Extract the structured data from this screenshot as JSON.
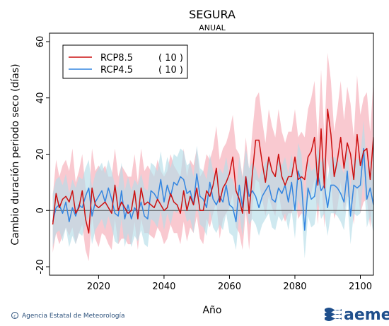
{
  "chart_data": {
    "type": "line",
    "title": "SEGURA",
    "subtitle": "ANUAL",
    "xlabel": "Año",
    "ylabel": "Cambio duración periodo seco (días)",
    "xlim": [
      2005,
      2104
    ],
    "ylim": [
      -23,
      63
    ],
    "xticks": [
      2020,
      2040,
      2060,
      2080,
      2100
    ],
    "yticks": [
      -20,
      0,
      20,
      40,
      60
    ],
    "x_start": 2006,
    "reference_line": 0,
    "legend_position": "top-left",
    "series": [
      {
        "name": "RCP8.5",
        "count": "( 10 )",
        "color": "#cc1010",
        "band_color": "#f7b7c0",
        "values": [
          -5,
          6,
          1,
          4,
          5,
          3,
          7,
          -1,
          1,
          7,
          -3,
          -8,
          8,
          2,
          1,
          2,
          3,
          1,
          -1,
          9,
          0,
          3,
          1,
          -1,
          0,
          7,
          -3,
          8,
          2,
          3,
          2,
          1,
          4,
          2,
          0,
          1,
          6,
          3,
          2,
          -1,
          7,
          0,
          5,
          2,
          8,
          0,
          0,
          7,
          5,
          9,
          15,
          3,
          8,
          10,
          13,
          19,
          7,
          4,
          -1,
          12,
          -1,
          13,
          25,
          25,
          17,
          10,
          19,
          14,
          12,
          20,
          12,
          9,
          12,
          12,
          19,
          11,
          12,
          11,
          19,
          21,
          26,
          9,
          29,
          8,
          36,
          27,
          12,
          18,
          26,
          15,
          24,
          20,
          11,
          27,
          16,
          21,
          22,
          11,
          26,
          25,
          9,
          31,
          43,
          37
        ],
        "low": [
          -15,
          -8,
          -12,
          -9,
          -6,
          -9,
          -6,
          -12,
          -8,
          -5,
          -14,
          -18,
          -2,
          -10,
          -13,
          -8,
          -9,
          -12,
          -14,
          -3,
          -12,
          -10,
          -10,
          -12,
          -12,
          -4,
          -14,
          -3,
          -8,
          -8,
          -9,
          -10,
          -6,
          -8,
          -12,
          -10,
          -5,
          -8,
          -8,
          -12,
          -4,
          -11,
          -6,
          -8,
          -2,
          -10,
          -12,
          -3,
          -6,
          -1,
          3,
          -10,
          -3,
          -1,
          1,
          6,
          -6,
          -8,
          -14,
          0,
          -14,
          1,
          11,
          10,
          4,
          -2,
          5,
          1,
          -2,
          7,
          -1,
          -4,
          -1,
          -1,
          5,
          -3,
          -1,
          -2,
          4,
          6,
          11,
          -5,
          12,
          -6,
          18,
          10,
          -3,
          1,
          10,
          -1,
          5,
          4,
          -5,
          9,
          -1,
          3,
          4,
          -6,
          8,
          7,
          -8,
          13,
          24,
          18
        ],
        "high": [
          5,
          18,
          12,
          16,
          18,
          14,
          22,
          10,
          14,
          20,
          8,
          4,
          22,
          14,
          16,
          14,
          16,
          12,
          12,
          22,
          12,
          16,
          14,
          12,
          12,
          20,
          10,
          22,
          14,
          16,
          14,
          12,
          18,
          14,
          12,
          14,
          20,
          16,
          14,
          12,
          22,
          12,
          18,
          16,
          22,
          12,
          14,
          20,
          18,
          22,
          30,
          18,
          22,
          24,
          28,
          34,
          22,
          20,
          12,
          26,
          14,
          28,
          40,
          42,
          32,
          24,
          36,
          30,
          26,
          36,
          28,
          24,
          28,
          28,
          36,
          26,
          28,
          26,
          36,
          40,
          46,
          24,
          50,
          26,
          56,
          46,
          28,
          36,
          46,
          32,
          44,
          38,
          26,
          48,
          34,
          40,
          42,
          28,
          46,
          44,
          26,
          58,
          66,
          62
        ]
      },
      {
        "name": "RCP4.5",
        "count": "( 10 )",
        "color": "#3385e0",
        "band_color": "#b6dde8",
        "values": [
          -4,
          1,
          2,
          -1,
          3,
          -4,
          1,
          -2,
          2,
          1,
          5,
          8,
          -2,
          3,
          5,
          7,
          3,
          8,
          4,
          -1,
          -2,
          7,
          -3,
          2,
          -3,
          1,
          -1,
          3,
          -2,
          -3,
          7,
          6,
          4,
          11,
          3,
          9,
          5,
          10,
          9,
          12,
          11,
          6,
          7,
          2,
          13,
          5,
          4,
          1,
          10,
          4,
          2,
          5,
          3,
          9,
          2,
          1,
          -4,
          9,
          1,
          12,
          5,
          7,
          5,
          1,
          5,
          7,
          9,
          4,
          3,
          8,
          6,
          9,
          3,
          10,
          0,
          14,
          10,
          -7,
          8,
          4,
          5,
          13,
          7,
          9,
          1,
          9,
          9,
          8,
          6,
          3,
          14,
          -2,
          9,
          8,
          9,
          22,
          4,
          8,
          2,
          9
        ],
        "low": [
          -13,
          -8,
          -7,
          -11,
          -6,
          -13,
          -9,
          -12,
          -8,
          -9,
          -5,
          -2,
          -12,
          -7,
          -5,
          -3,
          -7,
          -2,
          -6,
          -11,
          -12,
          -3,
          -13,
          -8,
          -13,
          -9,
          -11,
          -7,
          -12,
          -13,
          -3,
          -4,
          -6,
          0,
          -7,
          -1,
          -5,
          0,
          -1,
          2,
          1,
          -4,
          -3,
          -8,
          3,
          -5,
          -6,
          -9,
          0,
          -6,
          -8,
          -5,
          -7,
          -1,
          -8,
          -9,
          -14,
          -1,
          -9,
          2,
          -5,
          -3,
          -5,
          -9,
          -5,
          -3,
          -1,
          -6,
          -7,
          -2,
          -4,
          -1,
          -7,
          0,
          -10,
          4,
          0,
          -17,
          -2,
          -6,
          -5,
          3,
          -3,
          -1,
          -9,
          -1,
          -1,
          -2,
          -4,
          -7,
          4,
          -12,
          -1,
          -2,
          -1,
          12,
          -6,
          -2,
          -8,
          -1
        ],
        "high": [
          6,
          11,
          12,
          9,
          13,
          6,
          11,
          8,
          12,
          11,
          15,
          18,
          8,
          13,
          15,
          17,
          13,
          18,
          14,
          9,
          8,
          17,
          7,
          12,
          7,
          11,
          9,
          13,
          8,
          7,
          17,
          16,
          14,
          21,
          13,
          19,
          15,
          20,
          19,
          22,
          21,
          16,
          17,
          12,
          23,
          15,
          14,
          11,
          20,
          14,
          12,
          15,
          13,
          19,
          12,
          11,
          6,
          19,
          11,
          22,
          15,
          17,
          15,
          11,
          15,
          17,
          19,
          14,
          13,
          18,
          16,
          19,
          13,
          20,
          10,
          24,
          20,
          3,
          18,
          14,
          15,
          23,
          17,
          19,
          11,
          19,
          19,
          18,
          16,
          13,
          24,
          8,
          19,
          18,
          19,
          32,
          14,
          18,
          12,
          19
        ]
      }
    ]
  },
  "credit": "Agencia Estatal de Meteorología",
  "logo_text": "aemet"
}
